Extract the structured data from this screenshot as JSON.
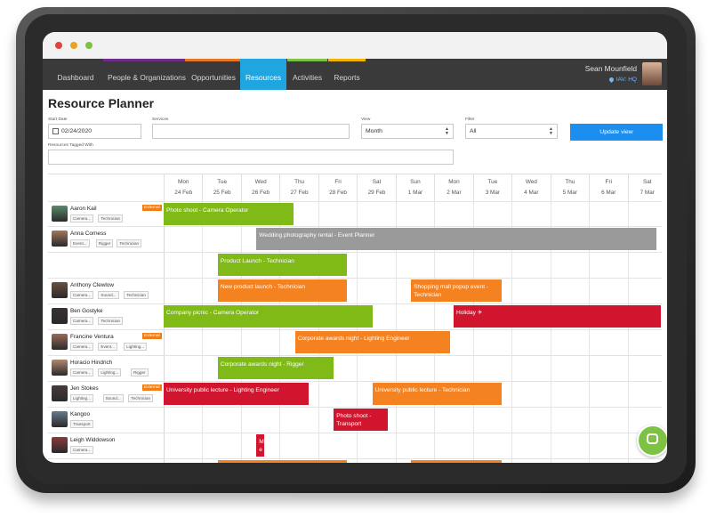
{
  "window": {
    "controls": [
      "close",
      "minimize",
      "maximize"
    ]
  },
  "nav": {
    "tabs": [
      {
        "label": "Dashboard",
        "accent": ""
      },
      {
        "label": "People & Organizations",
        "accent": "#6b2c8c"
      },
      {
        "label": "Opportunities",
        "accent": "#e87722"
      },
      {
        "label": "Resources",
        "accent": "#1fa5e0",
        "active": true
      },
      {
        "label": "Activities",
        "accent": "#7dc242"
      },
      {
        "label": "Reports",
        "accent": "#f0b400"
      }
    ],
    "user_name": "Sean Mounfield",
    "user_location": "IAV: HQ"
  },
  "page": {
    "title": "Resource Planner"
  },
  "filters": {
    "start_date_label": "Start Date",
    "start_date_value": "02/24/2020",
    "services_label": "Services",
    "services_value": "",
    "view_label": "View",
    "view_value": "Month",
    "filter_label": "Filter",
    "filter_value": "All",
    "tagged_label": "Resources Tagged With",
    "tagged_value": "",
    "update_button": "Update view"
  },
  "days": [
    {
      "dow": "Mon",
      "date": "24 Feb"
    },
    {
      "dow": "Tue",
      "date": "25 Feb"
    },
    {
      "dow": "Wed",
      "date": "26 Feb"
    },
    {
      "dow": "Thu",
      "date": "27 Feb"
    },
    {
      "dow": "Fri",
      "date": "28 Feb"
    },
    {
      "dow": "Sat",
      "date": "29 Feb"
    },
    {
      "dow": "Sun",
      "date": "1 Mar"
    },
    {
      "dow": "Mon",
      "date": "2 Mar"
    },
    {
      "dow": "Tue",
      "date": "3 Mar"
    },
    {
      "dow": "Wed",
      "date": "4 Mar"
    },
    {
      "dow": "Thu",
      "date": "5 Mar"
    },
    {
      "dow": "Fri",
      "date": "6 Mar"
    },
    {
      "dow": "Sat",
      "date": "7 Mar"
    }
  ],
  "resources": [
    {
      "name": "Aaron Kail",
      "tags": [
        "Camera...",
        "Technician"
      ],
      "external": "External"
    },
    {
      "name": "Anna Corness",
      "tags": [
        "Event...",
        "Rigger",
        "Technician"
      ],
      "external": ""
    },
    {
      "name": "",
      "tags": [],
      "external": ""
    },
    {
      "name": "Anthony Clewlow",
      "tags": [
        "Camera...",
        "Sound...",
        "Technician"
      ],
      "external": ""
    },
    {
      "name": "Ben Gostyke",
      "tags": [
        "Camera...",
        "Technician"
      ],
      "external": ""
    },
    {
      "name": "Francine Ventura",
      "tags": [
        "Camera...",
        "Event...",
        "Lighting..."
      ],
      "external": "External"
    },
    {
      "name": "Horacio Hindrich",
      "tags": [
        "Camera...",
        "Lighting...",
        "Rigger"
      ],
      "external": ""
    },
    {
      "name": "Jen Stokes",
      "tags": [
        "Lighting...",
        "Sound...",
        "Technician"
      ],
      "external": "External"
    },
    {
      "name": "Kangoo",
      "tags": [
        "Transport"
      ],
      "external": ""
    },
    {
      "name": "Leigh Widdowson",
      "tags": [
        "Camera..."
      ],
      "external": ""
    }
  ],
  "bookings": [
    {
      "row": 0,
      "start": 0,
      "end": 3.35,
      "color": "green",
      "label": "Photo shoot - Camera Operator"
    },
    {
      "row": 1,
      "start": 2.4,
      "end": 12.75,
      "color": "grey",
      "label": "Wedding photography rental - Event Planner"
    },
    {
      "row": 2,
      "start": 1.4,
      "end": 4.75,
      "color": "green",
      "label": "Product Launch - Technician"
    },
    {
      "row": 3,
      "start": 1.4,
      "end": 4.75,
      "color": "orange",
      "label": "New product launch - Technician"
    },
    {
      "row": 3,
      "start": 6.4,
      "end": 8.75,
      "color": "orange",
      "label": "Shopping mall popup event - Technician"
    },
    {
      "row": 4,
      "start": 0,
      "end": 5.4,
      "color": "green",
      "label": "Company picnic - Camera Operator"
    },
    {
      "row": 4,
      "start": 7.5,
      "end": 13,
      "color": "red",
      "label": "Holiday ✈"
    },
    {
      "row": 5,
      "start": 3.4,
      "end": 7.4,
      "color": "orange",
      "label": "Corporate awards night - Lighting Engineer"
    },
    {
      "row": 6,
      "start": 1.4,
      "end": 4.4,
      "color": "green",
      "label": "Corporate awards night - Rigger"
    },
    {
      "row": 7,
      "start": 0,
      "end": 3.75,
      "color": "red",
      "label": "University public lecture - Lighting Engineer"
    },
    {
      "row": 7,
      "start": 5.4,
      "end": 8.75,
      "color": "orange",
      "label": "University public lecture - Technician"
    },
    {
      "row": 8,
      "start": 4.4,
      "end": 5.8,
      "color": "red",
      "label": "Photo shoot - Transport"
    },
    {
      "row": 9,
      "start": 2.4,
      "end": 2.6,
      "color": "red",
      "label": "M e"
    },
    {
      "row": 10,
      "start": 1.4,
      "end": 4.75,
      "color": "orange",
      "label": ""
    },
    {
      "row": 10,
      "start": 6.4,
      "end": 8.75,
      "color": "orange",
      "label": ""
    }
  ],
  "chat": {
    "icon": "chat-icon"
  }
}
